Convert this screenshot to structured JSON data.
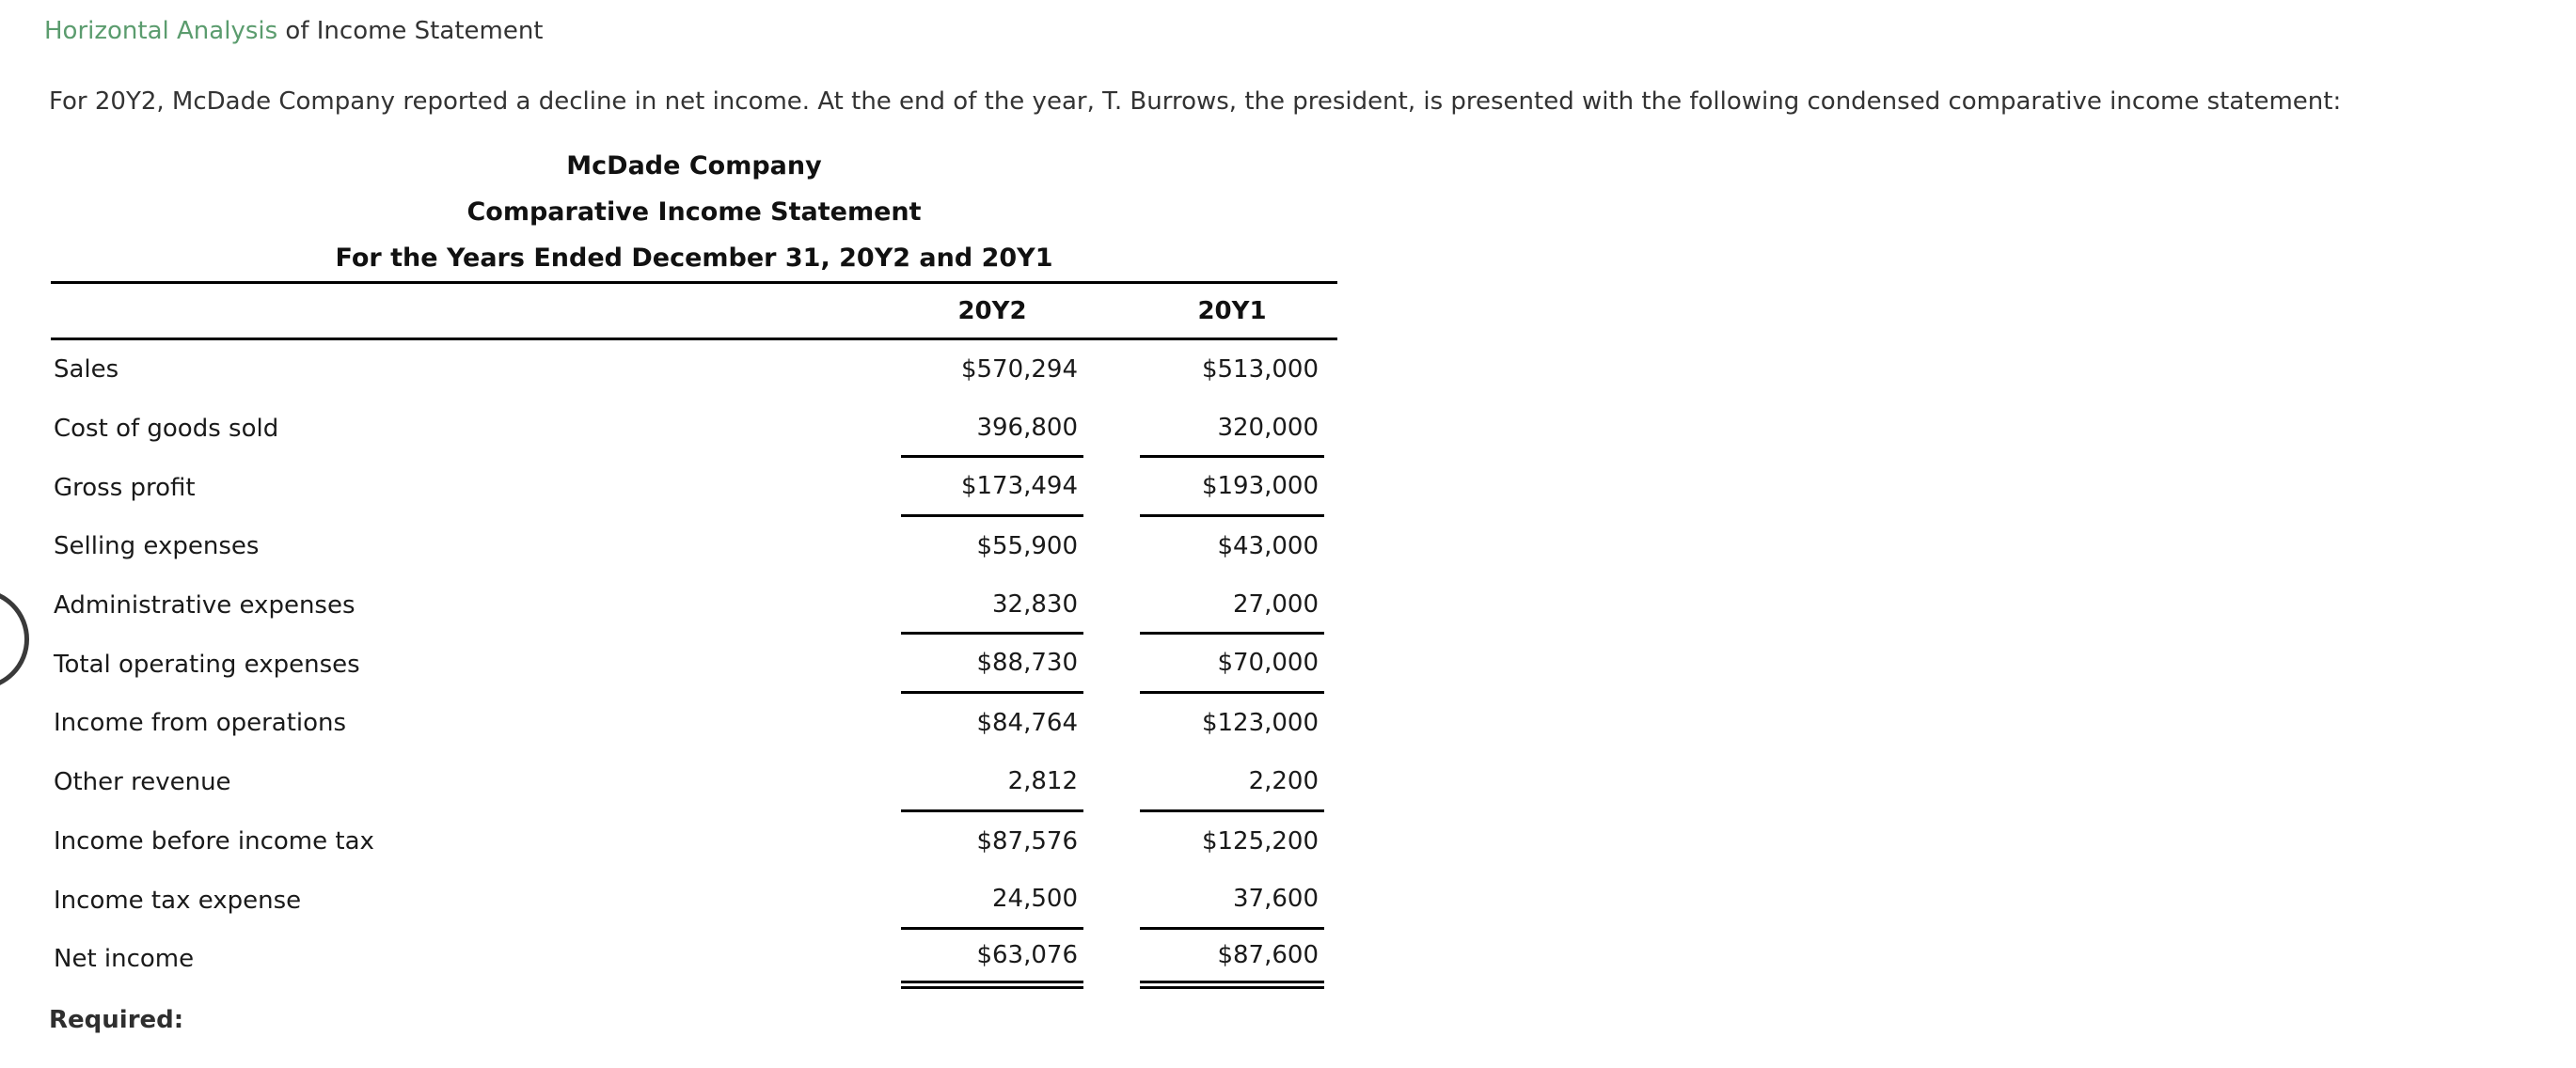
{
  "page": {
    "heading": {
      "link_text": "Horizontal Analysis",
      "rest_text": " of Income Statement"
    },
    "intro": "For 20Y2, McDade Company reported a decline in net income. At the end of the year, T. Burrows, the president, is presented with the following condensed comparative income statement:",
    "required_label": "Required:"
  },
  "statement": {
    "company": "McDade Company",
    "title": "Comparative Income Statement",
    "period": "For the Years Ended December 31, 20Y2 and 20Y1",
    "columns": [
      "20Y2",
      "20Y1"
    ],
    "rows": [
      {
        "label": "Sales",
        "y2": "$570,294",
        "y1": "$513,000",
        "rule": "none"
      },
      {
        "label": "Cost of goods sold",
        "y2": "396,800",
        "y1": "320,000",
        "rule": "single"
      },
      {
        "label": "Gross profit",
        "y2": "$173,494",
        "y1": "$193,000",
        "rule": "single"
      },
      {
        "label": "Selling expenses",
        "y2": "$55,900",
        "y1": "$43,000",
        "rule": "none"
      },
      {
        "label": "Administrative expenses",
        "y2": "32,830",
        "y1": "27,000",
        "rule": "single"
      },
      {
        "label": "Total operating expenses",
        "y2": "$88,730",
        "y1": "$70,000",
        "rule": "single"
      },
      {
        "label": "Income from operations",
        "y2": "$84,764",
        "y1": "$123,000",
        "rule": "none"
      },
      {
        "label": "Other revenue",
        "y2": "2,812",
        "y1": "2,200",
        "rule": "single"
      },
      {
        "label": "Income before income tax",
        "y2": "$87,576",
        "y1": "$125,200",
        "rule": "none"
      },
      {
        "label": "Income tax expense",
        "y2": "24,500",
        "y1": "37,600",
        "rule": "single"
      },
      {
        "label": "Net income",
        "y2": "$63,076",
        "y1": "$87,600",
        "rule": "double"
      }
    ]
  },
  "colors": {
    "link_green": "#5b9c6e",
    "body_text": "#333333",
    "table_text": "#1a1a1a",
    "rule": "#000000"
  }
}
